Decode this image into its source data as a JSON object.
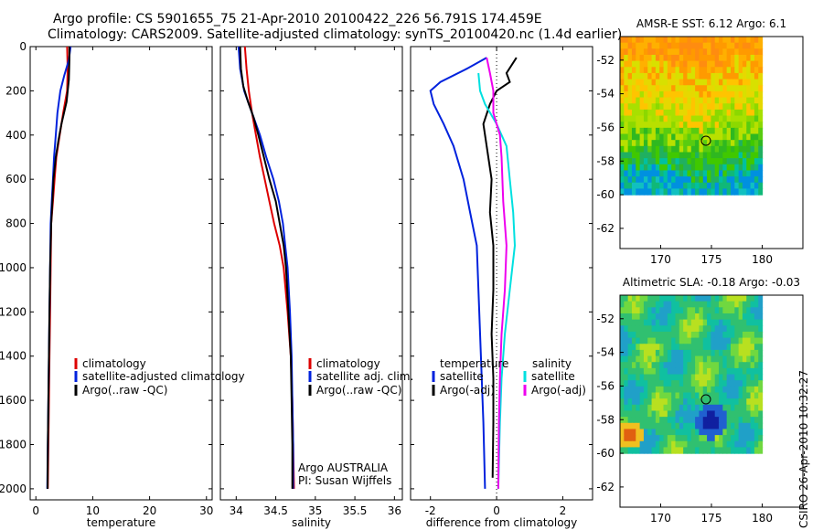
{
  "header": {
    "line1": "Argo profile: CS 5901655_75 21-Apr-2010 20100422_226 56.791S 174.459E",
    "line2": "Climatology: CARS2009. Satellite-adjusted climatology: synTS_20100420.nc (1.4d earlier)"
  },
  "side_label": "CSIRO 26-Apr-2010 10:32:27",
  "colors": {
    "climatology": "#dd0000",
    "satellite": "#0022dd",
    "argo": "#000000",
    "cyan": "#00e0e0",
    "magenta": "#ee00ee"
  },
  "chart_data": [
    {
      "type": "line",
      "id": "temperature",
      "xlabel": "temperature",
      "ylabel": "",
      "xlim": [
        -1,
        31
      ],
      "ylim": [
        2050,
        0
      ],
      "xticks": [
        "0",
        "10",
        "20",
        "30"
      ],
      "xtick_values": [
        0,
        10,
        20,
        30
      ],
      "yticks": [
        "0",
        "200",
        "400",
        "600",
        "800",
        "1000",
        "1200",
        "1400",
        "1600",
        "1800",
        "2000"
      ],
      "ytick_values": [
        0,
        200,
        400,
        600,
        800,
        1000,
        1200,
        1400,
        1600,
        1800,
        2000
      ],
      "legend": [
        "climatology",
        "satellite-adjusted climatology",
        "Argo(..raw -QC)"
      ],
      "series": [
        {
          "name": "climatology",
          "color": "red",
          "points": [
            [
              5.5,
              0
            ],
            [
              5.6,
              100
            ],
            [
              5.5,
              200
            ],
            [
              4.8,
              300
            ],
            [
              4.2,
              400
            ],
            [
              3.6,
              500
            ],
            [
              3.3,
              600
            ],
            [
              3.0,
              700
            ],
            [
              2.7,
              800
            ],
            [
              2.6,
              1000
            ],
            [
              2.5,
              1200
            ],
            [
              2.4,
              1400
            ],
            [
              2.3,
              1600
            ],
            [
              2.2,
              1800
            ],
            [
              2.1,
              2000
            ]
          ]
        },
        {
          "name": "satellite-adjusted climatology",
          "color": "blue",
          "points": [
            [
              6.1,
              0
            ],
            [
              5.8,
              60
            ],
            [
              5.0,
              130
            ],
            [
              4.3,
              200
            ],
            [
              3.8,
              300
            ],
            [
              3.5,
              400
            ],
            [
              3.2,
              500
            ],
            [
              3.0,
              600
            ],
            [
              2.8,
              700
            ],
            [
              2.6,
              800
            ],
            [
              2.5,
              1000
            ],
            [
              2.4,
              1200
            ],
            [
              2.3,
              1400
            ],
            [
              2.2,
              1600
            ],
            [
              2.1,
              1800
            ],
            [
              2.0,
              2000
            ]
          ]
        },
        {
          "name": "Argo(..raw -QC)",
          "color": "black",
          "points": [
            [
              5.9,
              0
            ],
            [
              5.9,
              60
            ],
            [
              5.8,
              150
            ],
            [
              5.4,
              250
            ],
            [
              4.5,
              350
            ],
            [
              4.0,
              420
            ],
            [
              3.5,
              500
            ],
            [
              3.1,
              600
            ],
            [
              2.9,
              700
            ],
            [
              2.7,
              800
            ],
            [
              2.5,
              1000
            ],
            [
              2.4,
              1200
            ],
            [
              2.3,
              1400
            ],
            [
              2.2,
              1600
            ],
            [
              2.1,
              1800
            ],
            [
              2.05,
              2000
            ]
          ]
        }
      ]
    },
    {
      "type": "line",
      "id": "salinity",
      "xlabel": "salinity",
      "xlim": [
        33.8,
        36.1
      ],
      "ylim": [
        2050,
        0
      ],
      "xticks": [
        "34",
        "34.5",
        "35",
        "35.5",
        "36"
      ],
      "xtick_values": [
        34,
        34.5,
        35,
        35.5,
        36
      ],
      "legend": [
        "climatology",
        "satellite adj. clim.",
        "Argo(..raw -QC)"
      ],
      "annotations": [
        "Argo AUSTRALIA",
        "PI: Susan Wijffels"
      ],
      "series": [
        {
          "name": "climatology",
          "color": "red",
          "points": [
            [
              34.11,
              0
            ],
            [
              34.13,
              100
            ],
            [
              34.16,
              200
            ],
            [
              34.2,
              300
            ],
            [
              34.25,
              400
            ],
            [
              34.3,
              500
            ],
            [
              34.36,
              600
            ],
            [
              34.42,
              700
            ],
            [
              34.48,
              800
            ],
            [
              34.55,
              900
            ],
            [
              34.6,
              1000
            ],
            [
              34.65,
              1200
            ],
            [
              34.69,
              1400
            ],
            [
              34.71,
              1600
            ],
            [
              34.72,
              1800
            ],
            [
              34.73,
              2000
            ]
          ]
        },
        {
          "name": "satellite adj. clim.",
          "color": "blue",
          "points": [
            [
              34.03,
              0
            ],
            [
              34.05,
              100
            ],
            [
              34.1,
              200
            ],
            [
              34.2,
              300
            ],
            [
              34.3,
              400
            ],
            [
              34.38,
              500
            ],
            [
              34.47,
              600
            ],
            [
              34.54,
              700
            ],
            [
              34.59,
              800
            ],
            [
              34.62,
              900
            ],
            [
              34.65,
              1000
            ],
            [
              34.68,
              1200
            ],
            [
              34.7,
              1400
            ],
            [
              34.71,
              1600
            ],
            [
              34.72,
              1800
            ],
            [
              34.72,
              2000
            ]
          ]
        },
        {
          "name": "Argo(..raw -QC)",
          "color": "black",
          "points": [
            [
              34.05,
              0
            ],
            [
              34.06,
              100
            ],
            [
              34.09,
              180
            ],
            [
              34.15,
              250
            ],
            [
              34.22,
              320
            ],
            [
              34.28,
              400
            ],
            [
              34.35,
              500
            ],
            [
              34.42,
              600
            ],
            [
              34.5,
              700
            ],
            [
              34.55,
              800
            ],
            [
              34.6,
              900
            ],
            [
              34.63,
              1000
            ],
            [
              34.66,
              1200
            ],
            [
              34.69,
              1400
            ],
            [
              34.7,
              1600
            ],
            [
              34.71,
              1800
            ],
            [
              34.71,
              2000
            ]
          ]
        }
      ]
    },
    {
      "type": "line",
      "id": "difference",
      "xlabel": "difference from climatology",
      "xlim": [
        -2.6,
        2.9
      ],
      "ylim": [
        2050,
        0
      ],
      "xticks": [
        "-2",
        "0",
        "2"
      ],
      "xtick_values": [
        -2,
        0,
        2
      ],
      "legend_left_title": "temperature",
      "legend_left": [
        "satellite",
        "Argo(-adj)"
      ],
      "legend_right_title": "salinity",
      "legend_right": [
        "satellite",
        "Argo(-adj)"
      ],
      "series": [
        {
          "name": "temperature satellite",
          "color": "blue",
          "points": [
            [
              -0.3,
              50
            ],
            [
              -0.9,
              100
            ],
            [
              -1.7,
              160
            ],
            [
              -2.0,
              200
            ],
            [
              -1.9,
              260
            ],
            [
              -1.6,
              350
            ],
            [
              -1.3,
              450
            ],
            [
              -1.0,
              600
            ],
            [
              -0.8,
              750
            ],
            [
              -0.6,
              900
            ],
            [
              -0.55,
              1100
            ],
            [
              -0.5,
              1300
            ],
            [
              -0.45,
              1500
            ],
            [
              -0.4,
              1700
            ],
            [
              -0.35,
              2000
            ]
          ]
        },
        {
          "name": "temperature Argo(-adj)",
          "color": "black",
          "points": [
            [
              0.6,
              50
            ],
            [
              0.3,
              120
            ],
            [
              0.4,
              160
            ],
            [
              0.0,
              200
            ],
            [
              -0.2,
              260
            ],
            [
              -0.4,
              350
            ],
            [
              -0.3,
              450
            ],
            [
              -0.15,
              600
            ],
            [
              -0.2,
              750
            ],
            [
              -0.1,
              900
            ],
            [
              -0.1,
              1100
            ],
            [
              -0.15,
              1300
            ],
            [
              -0.1,
              1500
            ],
            [
              -0.1,
              1700
            ],
            [
              -0.12,
              1950
            ]
          ]
        },
        {
          "name": "salinity satellite",
          "color": "cyan",
          "points": [
            [
              -0.55,
              120
            ],
            [
              -0.5,
              200
            ],
            [
              -0.35,
              260
            ],
            [
              0.0,
              350
            ],
            [
              0.3,
              450
            ],
            [
              0.4,
              600
            ],
            [
              0.5,
              750
            ],
            [
              0.55,
              900
            ],
            [
              0.4,
              1100
            ],
            [
              0.25,
              1300
            ],
            [
              0.15,
              1500
            ],
            [
              0.1,
              1700
            ],
            [
              0.05,
              2000
            ]
          ]
        },
        {
          "name": "salinity Argo(-adj)",
          "color": "magenta",
          "points": [
            [
              -0.3,
              50
            ],
            [
              -0.2,
              120
            ],
            [
              -0.1,
              200
            ],
            [
              -0.1,
              300
            ],
            [
              0.1,
              400
            ],
            [
              0.15,
              500
            ],
            [
              0.2,
              700
            ],
            [
              0.3,
              900
            ],
            [
              0.25,
              1100
            ],
            [
              0.15,
              1300
            ],
            [
              0.1,
              1500
            ],
            [
              0.07,
              1700
            ],
            [
              0.05,
              2000
            ]
          ]
        }
      ]
    },
    {
      "type": "heatmap",
      "id": "sst_map",
      "title": "AMSR-E SST: 6.12 Argo: 6.1",
      "xticks": [
        "170",
        "175",
        "180"
      ],
      "xtick_values": [
        170,
        175,
        180
      ],
      "yticks": [
        "-52",
        "-54",
        "-56",
        "-58",
        "-60",
        "-62"
      ],
      "ytick_values": [
        -52,
        -54,
        -56,
        -58,
        -60,
        -62
      ],
      "xlim": [
        166,
        184
      ],
      "ylim": [
        -63.2,
        -50.6
      ],
      "data_extent": {
        "lon": [
          166,
          180
        ],
        "lat": [
          -60,
          -50.6
        ]
      },
      "marker": [
        174.459,
        -56.791
      ]
    },
    {
      "type": "heatmap",
      "id": "sla_map",
      "title": "Altimetric SLA: -0.18 Argo: -0.03",
      "xticks": [
        "170",
        "175",
        "180"
      ],
      "xtick_values": [
        170,
        175,
        180
      ],
      "yticks": [
        "-52",
        "-54",
        "-56",
        "-58",
        "-60",
        "-62"
      ],
      "ytick_values": [
        -52,
        -54,
        -56,
        -58,
        -60,
        -62
      ],
      "xlim": [
        166,
        184
      ],
      "ylim": [
        -63.2,
        -50.6
      ],
      "data_extent": {
        "lon": [
          166,
          180
        ],
        "lat": [
          -60,
          -50.6
        ]
      },
      "marker": [
        174.459,
        -56.791
      ]
    }
  ]
}
